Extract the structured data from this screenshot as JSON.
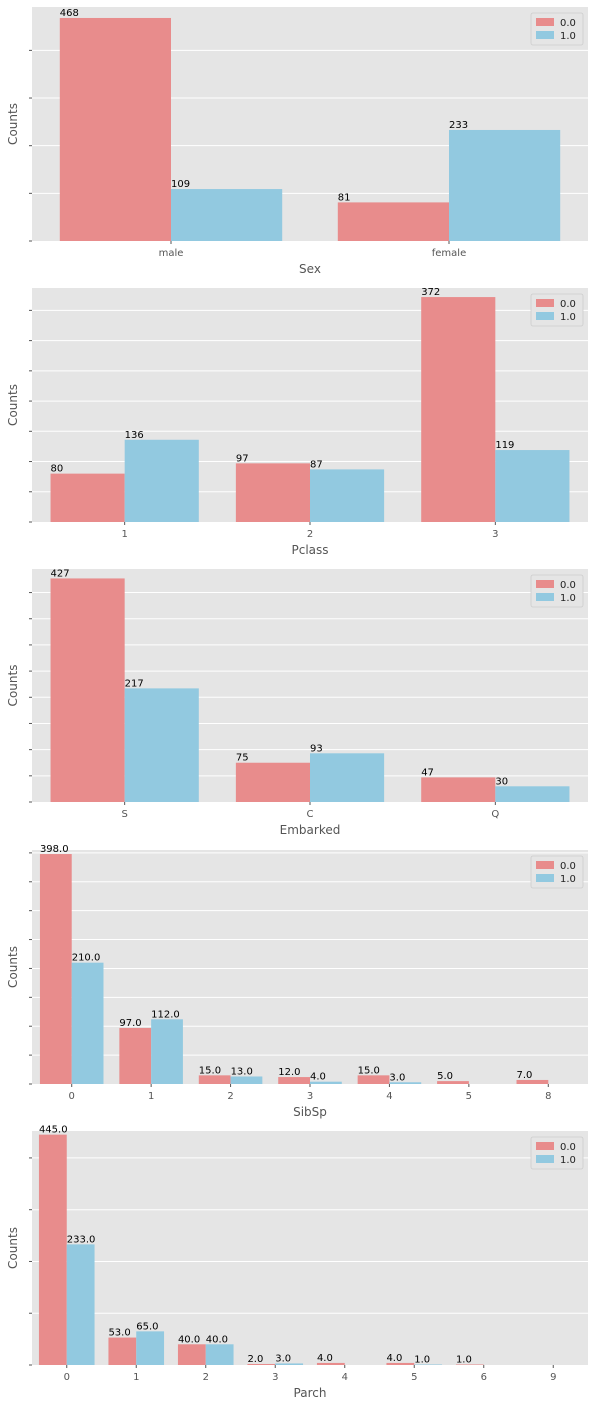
{
  "colors": {
    "series0": "#e88c8c",
    "series1": "#92c9e0",
    "plot_bg": "#e5e5e5",
    "grid": "#ffffff",
    "label_text": "#000000",
    "axis_text": "#555555"
  },
  "chart_data": [
    {
      "type": "bar",
      "xlabel": "Sex",
      "ylabel": "Counts",
      "categories": [
        "male",
        "female"
      ],
      "series": [
        {
          "name": "0.0",
          "values": [
            468,
            81
          ]
        },
        {
          "name": "1.0",
          "values": [
            109,
            233
          ]
        }
      ],
      "value_labels": [
        [
          "468",
          "81"
        ],
        [
          "109",
          "233"
        ]
      ],
      "ylim": [
        0,
        491
      ],
      "yticks": [
        0,
        100,
        200,
        300,
        400
      ],
      "legend": "top-right",
      "grid": true
    },
    {
      "type": "bar",
      "xlabel": "Pclass",
      "ylabel": "Counts",
      "categories": [
        "1",
        "2",
        "3"
      ],
      "series": [
        {
          "name": "0.0",
          "values": [
            80,
            97,
            372
          ]
        },
        {
          "name": "1.0",
          "values": [
            136,
            87,
            119
          ]
        }
      ],
      "value_labels": [
        [
          "80",
          "97",
          "372"
        ],
        [
          "136",
          "87",
          "119"
        ]
      ],
      "ylim": [
        0,
        387
      ],
      "yticks": [
        0,
        50,
        100,
        150,
        200,
        250,
        300,
        350
      ],
      "legend": "top-right",
      "grid": true
    },
    {
      "type": "bar",
      "xlabel": "Embarked",
      "ylabel": "Counts",
      "categories": [
        "S",
        "C",
        "Q"
      ],
      "series": [
        {
          "name": "0.0",
          "values": [
            427,
            75,
            47
          ]
        },
        {
          "name": "1.0",
          "values": [
            217,
            93,
            30
          ]
        }
      ],
      "value_labels": [
        [
          "427",
          "75",
          "47"
        ],
        [
          "217",
          "93",
          "30"
        ]
      ],
      "ylim": [
        0,
        445
      ],
      "yticks": [
        0,
        50,
        100,
        150,
        200,
        250,
        300,
        350,
        400
      ],
      "legend": "top-right",
      "grid": true
    },
    {
      "type": "bar",
      "xlabel": "SibSp",
      "ylabel": "Counts",
      "categories": [
        "0",
        "1",
        "2",
        "3",
        "4",
        "5",
        "8"
      ],
      "series": [
        {
          "name": "0.0",
          "values": [
            398,
            97,
            15,
            12,
            15,
            5,
            7
          ]
        },
        {
          "name": "1.0",
          "values": [
            210,
            112,
            13,
            4,
            3,
            0,
            0
          ]
        }
      ],
      "value_labels": [
        [
          "398.0",
          "97.0",
          "15.0",
          "12.0",
          "15.0",
          "5.0",
          "7.0"
        ],
        [
          "210.0",
          "112.0",
          "13.0",
          "4.0",
          "3.0",
          "",
          ""
        ]
      ],
      "ylim": [
        0,
        405
      ],
      "yticks": [
        0,
        50,
        100,
        150,
        200,
        250,
        300,
        350,
        400
      ],
      "legend": "top-right",
      "grid": true
    },
    {
      "type": "bar",
      "xlabel": "Parch",
      "ylabel": "Counts",
      "categories": [
        "0",
        "1",
        "2",
        "3",
        "4",
        "5",
        "6",
        "9"
      ],
      "series": [
        {
          "name": "0.0",
          "values": [
            445,
            53,
            40,
            2,
            4,
            4,
            1,
            0
          ]
        },
        {
          "name": "1.0",
          "values": [
            233,
            65,
            40,
            3,
            0,
            1,
            0,
            0
          ]
        }
      ],
      "value_labels": [
        [
          "445.0",
          "53.0",
          "40.0",
          "2.0",
          "4.0",
          "4.0",
          "1.0",
          ""
        ],
        [
          "233.0",
          "65.0",
          "40.0",
          "3.0",
          "",
          "1.0",
          "",
          ""
        ]
      ],
      "ylim": [
        0,
        452
      ],
      "yticks": [
        0,
        100,
        200,
        300,
        400
      ],
      "legend": "top-right",
      "grid": true
    }
  ]
}
